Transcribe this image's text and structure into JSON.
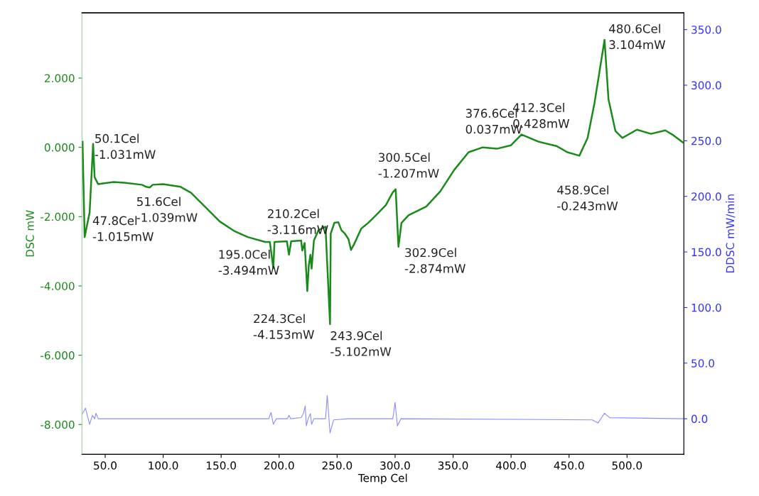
{
  "chart_data": {
    "type": "line",
    "xlabel": "Temp Cel",
    "ylabel": "DSC mW",
    "y2label": "DDSC mW/min",
    "xlim": [
      30,
      549
    ],
    "xticks": [
      {
        "value": 50,
        "label": "50.0"
      },
      {
        "value": 100,
        "label": "100.0"
      },
      {
        "value": 150,
        "label": "150.0"
      },
      {
        "value": 200,
        "label": "200.0"
      },
      {
        "value": 250,
        "label": "250.0"
      },
      {
        "value": 300,
        "label": "300.0"
      },
      {
        "value": 350,
        "label": "350.0"
      },
      {
        "value": 400,
        "label": "400.0"
      },
      {
        "value": 450,
        "label": "450.0"
      },
      {
        "value": 500,
        "label": "500.0"
      }
    ],
    "ylim": [
      -8.86,
      3.88
    ],
    "yticks": [
      {
        "value": -8,
        "label": "-8.000"
      },
      {
        "value": -6,
        "label": "-6.000"
      },
      {
        "value": -4,
        "label": "-4.000"
      },
      {
        "value": -2,
        "label": "-2.000"
      },
      {
        "value": 0,
        "label": "0.000"
      },
      {
        "value": 2,
        "label": "2.000"
      }
    ],
    "y2lim": [
      -32,
      365
    ],
    "y2ticks": [
      {
        "value": 0,
        "label": "0.0"
      },
      {
        "value": 50,
        "label": "50.0"
      },
      {
        "value": 100,
        "label": "100.0"
      },
      {
        "value": 150,
        "label": "150.0"
      },
      {
        "value": 200,
        "label": "200.0"
      },
      {
        "value": 250,
        "label": "250.0"
      },
      {
        "value": 300,
        "label": "300.0"
      },
      {
        "value": 350,
        "label": "350.0"
      }
    ],
    "series": [
      {
        "color": "#1a8a1a",
        "x": [
          30.5,
          32.3,
          36.6,
          39.6,
          40.9,
          43.9,
          48.2,
          57.3,
          66.5,
          81.7,
          85.4,
          88.4,
          91,
          100,
          115,
          124,
          136.6,
          148.8,
          161,
          173,
          188,
          192,
          195,
          196,
          206.7,
          208.5,
          210.4,
          219,
          220,
          222,
          224.3,
          225.6,
          227,
          228,
          230,
          234,
          240,
          243.9,
          244.5,
          247.6,
          251,
          253.7,
          256.7,
          259.8,
          262,
          264.6,
          270.7,
          276.8,
          282.9,
          292,
          298,
          300.5,
          302.9,
          305.5,
          311.6,
          326.8,
          339,
          351,
          363.4,
          375.6,
          387.8,
          400,
          409,
          424,
          439,
          448.5,
          458.9,
          466,
          472,
          480.6,
          484,
          490,
          496,
          508.5,
          520.7,
          533,
          539,
          549
        ],
        "values": [
          0.16,
          -2.59,
          -1.88,
          0.1,
          -0.86,
          -1.06,
          -1.04,
          -1.0,
          -1.02,
          -1.08,
          -1.14,
          -1.16,
          -1.08,
          -1.06,
          -1.14,
          -1.31,
          -1.73,
          -2.14,
          -2.41,
          -2.59,
          -2.73,
          -2.73,
          -3.49,
          -2.73,
          -2.71,
          -3.1,
          -2.71,
          -2.69,
          -2.98,
          -2.76,
          -4.15,
          -3.4,
          -3.1,
          -3.5,
          -2.69,
          -2.39,
          -2.29,
          -5.1,
          -2.49,
          -2.18,
          -2.16,
          -2.39,
          -2.49,
          -2.65,
          -2.96,
          -2.8,
          -2.35,
          -2.18,
          -1.98,
          -1.67,
          -1.3,
          -1.21,
          -2.87,
          -2.18,
          -1.96,
          -1.71,
          -1.27,
          -0.65,
          -0.14,
          0.0,
          -0.04,
          0.06,
          0.37,
          0.16,
          0.04,
          -0.14,
          -0.24,
          0.27,
          1.29,
          3.1,
          1.39,
          0.47,
          0.27,
          0.51,
          0.39,
          0.49,
          0.37,
          0.12
        ]
      },
      {
        "color": "#8c8cff",
        "axis": "y2",
        "x": [
          30.5,
          33,
          36.6,
          39,
          41,
          42,
          44,
          100,
          191,
          193,
          195,
          197.6,
          207,
          208.5,
          210,
          219,
          221,
          222.5,
          223.5,
          225,
          227,
          228,
          230,
          240,
          241.5,
          243.9,
          247,
          260,
          298,
          300,
          302,
          305,
          470,
          475,
          480.6,
          485,
          549
        ],
        "values": [
          4.5,
          9.6,
          -5.1,
          3,
          0,
          5,
          0,
          0,
          0,
          5.7,
          -5,
          0,
          0,
          3.2,
          0,
          1,
          5,
          11.5,
          -6.4,
          0,
          4.5,
          -5,
          0,
          0,
          21,
          -12.8,
          -1,
          0,
          0,
          14.7,
          -6.4,
          0,
          -1,
          -3.8,
          5,
          1,
          0
        ]
      }
    ],
    "annotations": [
      {
        "text": "50.1Cel\n-1.031mW",
        "x": 50.1,
        "y": -1.031
      },
      "47.8Cel\n-1.015mW",
      "51.6Cel\n-1.039mW",
      {
        "text": "195.0Cel\n-3.494mW",
        "x": 195.0,
        "y": -3.494
      },
      "210.2Cel\n-3.116mW",
      {
        "text": "224.3Cel\n-4.153mW",
        "x": 224.3,
        "y": -4.153
      },
      {
        "text": "243.9Cel\n-5.102mW",
        "x": 243.9,
        "y": -5.102
      },
      {
        "text": "300.5Cel\n-1.207mW",
        "x": 300.5,
        "y": -1.207
      },
      {
        "text": "302.9Cel\n-2.874mW",
        "x": 302.9,
        "y": -2.874
      },
      {
        "text": "376.6Cel\n0.037mW",
        "x": 376.6,
        "y": 0.037
      },
      {
        "text": "412.3Cel\n0.428mW",
        "x": 412.3,
        "y": 0.428
      },
      {
        "text": "458.9Cel\n-0.243mW",
        "x": 458.9,
        "y": -0.243
      },
      {
        "text": "480.6Cel\n3.104mW",
        "x": 480.6,
        "y": 3.104
      }
    ]
  }
}
